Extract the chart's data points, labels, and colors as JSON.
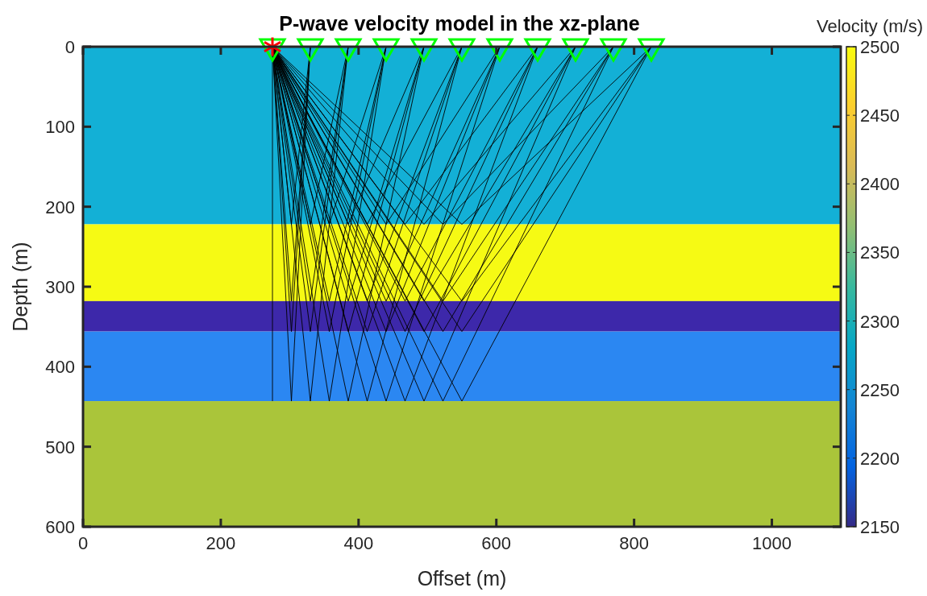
{
  "chart_data": {
    "type": "line",
    "title": "P-wave velocity model in the xz-plane",
    "xlabel": "Offset (m)",
    "ylabel": "Depth (m)",
    "clabel": "Velocity (m/s)",
    "xlim": [
      0,
      1100
    ],
    "xticks": [
      0,
      200,
      400,
      600,
      800,
      1000
    ],
    "ylim": [
      600,
      0
    ],
    "yticks": [
      0,
      100,
      200,
      300,
      400,
      500,
      600
    ],
    "clim": [
      2150,
      2500
    ],
    "cticks": [
      2150,
      2200,
      2250,
      2300,
      2350,
      2400,
      2450,
      2500
    ],
    "grid": false,
    "line_style": "solid",
    "bands": [
      {
        "axis": "y",
        "from": 0,
        "to": 222,
        "color": "#13b0d6"
      },
      {
        "axis": "y",
        "from": 222,
        "to": 318,
        "color": "#f6fa14"
      },
      {
        "axis": "y",
        "from": 318,
        "to": 356,
        "color": "#3d28aa"
      },
      {
        "axis": "y",
        "from": 356,
        "to": 443,
        "color": "#2b87f2"
      },
      {
        "axis": "y",
        "from": 443,
        "to": 600,
        "color": "#aac53a"
      }
    ],
    "series": [
      {
        "type": "line",
        "color": "#000000",
        "x": [
          275,
          302.5,
          330
        ],
        "values": [
          0,
          222,
          0
        ]
      },
      {
        "type": "line",
        "color": "#000000",
        "x": [
          275,
          330,
          385
        ],
        "values": [
          0,
          222,
          0
        ]
      },
      {
        "type": "line",
        "color": "#000000",
        "x": [
          275,
          357.5,
          440
        ],
        "values": [
          0,
          222,
          0
        ]
      },
      {
        "type": "line",
        "color": "#000000",
        "x": [
          275,
          385,
          495
        ],
        "values": [
          0,
          222,
          0
        ]
      },
      {
        "type": "line",
        "color": "#000000",
        "x": [
          275,
          412.5,
          550
        ],
        "values": [
          0,
          222,
          0
        ]
      },
      {
        "type": "line",
        "color": "#000000",
        "x": [
          275,
          440,
          605
        ],
        "values": [
          0,
          222,
          0
        ]
      },
      {
        "type": "line",
        "color": "#000000",
        "x": [
          275,
          467.5,
          660
        ],
        "values": [
          0,
          222,
          0
        ]
      },
      {
        "type": "line",
        "color": "#000000",
        "x": [
          275,
          495,
          715
        ],
        "values": [
          0,
          222,
          0
        ]
      },
      {
        "type": "line",
        "color": "#000000",
        "x": [
          275,
          522.5,
          770
        ],
        "values": [
          0,
          222,
          0
        ]
      },
      {
        "type": "line",
        "color": "#000000",
        "x": [
          275,
          550,
          825
        ],
        "values": [
          0,
          222,
          0
        ]
      },
      {
        "type": "line",
        "color": "#000000",
        "x": [
          275,
          302.5,
          330
        ],
        "values": [
          0,
          318,
          0
        ]
      },
      {
        "type": "line",
        "color": "#000000",
        "x": [
          275,
          330,
          385
        ],
        "values": [
          0,
          318,
          0
        ]
      },
      {
        "type": "line",
        "color": "#000000",
        "x": [
          275,
          357.5,
          440
        ],
        "values": [
          0,
          318,
          0
        ]
      },
      {
        "type": "line",
        "color": "#000000",
        "x": [
          275,
          385,
          495
        ],
        "values": [
          0,
          318,
          0
        ]
      },
      {
        "type": "line",
        "color": "#000000",
        "x": [
          275,
          412.5,
          550
        ],
        "values": [
          0,
          318,
          0
        ]
      },
      {
        "type": "line",
        "color": "#000000",
        "x": [
          275,
          440,
          605
        ],
        "values": [
          0,
          318,
          0
        ]
      },
      {
        "type": "line",
        "color": "#000000",
        "x": [
          275,
          467.5,
          660
        ],
        "values": [
          0,
          318,
          0
        ]
      },
      {
        "type": "line",
        "color": "#000000",
        "x": [
          275,
          495,
          715
        ],
        "values": [
          0,
          318,
          0
        ]
      },
      {
        "type": "line",
        "color": "#000000",
        "x": [
          275,
          522.5,
          770
        ],
        "values": [
          0,
          318,
          0
        ]
      },
      {
        "type": "line",
        "color": "#000000",
        "x": [
          275,
          550,
          825
        ],
        "values": [
          0,
          318,
          0
        ]
      },
      {
        "type": "line",
        "color": "#000000",
        "x": [
          275,
          302.5,
          330
        ],
        "values": [
          0,
          356,
          0
        ]
      },
      {
        "type": "line",
        "color": "#000000",
        "x": [
          275,
          330,
          385
        ],
        "values": [
          0,
          356,
          0
        ]
      },
      {
        "type": "line",
        "color": "#000000",
        "x": [
          275,
          357.5,
          440
        ],
        "values": [
          0,
          356,
          0
        ]
      },
      {
        "type": "line",
        "color": "#000000",
        "x": [
          275,
          385,
          495
        ],
        "values": [
          0,
          356,
          0
        ]
      },
      {
        "type": "line",
        "color": "#000000",
        "x": [
          275,
          412.5,
          550
        ],
        "values": [
          0,
          356,
          0
        ]
      },
      {
        "type": "line",
        "color": "#000000",
        "x": [
          275,
          440,
          605
        ],
        "values": [
          0,
          356,
          0
        ]
      },
      {
        "type": "line",
        "color": "#000000",
        "x": [
          275,
          467.5,
          660
        ],
        "values": [
          0,
          356,
          0
        ]
      },
      {
        "type": "line",
        "color": "#000000",
        "x": [
          275,
          495,
          715
        ],
        "values": [
          0,
          356,
          0
        ]
      },
      {
        "type": "line",
        "color": "#000000",
        "x": [
          275,
          522.5,
          770
        ],
        "values": [
          0,
          356,
          0
        ]
      },
      {
        "type": "line",
        "color": "#000000",
        "x": [
          275,
          550,
          825
        ],
        "values": [
          0,
          356,
          0
        ]
      },
      {
        "type": "line",
        "color": "#000000",
        "x": [
          275,
          275
        ],
        "values": [
          0,
          443
        ]
      },
      {
        "type": "line",
        "color": "#000000",
        "x": [
          275,
          302.5,
          330
        ],
        "values": [
          0,
          443,
          0
        ]
      },
      {
        "type": "line",
        "color": "#000000",
        "x": [
          275,
          330,
          385
        ],
        "values": [
          0,
          443,
          0
        ]
      },
      {
        "type": "line",
        "color": "#000000",
        "x": [
          275,
          357.5,
          440
        ],
        "values": [
          0,
          443,
          0
        ]
      },
      {
        "type": "line",
        "color": "#000000",
        "x": [
          275,
          385,
          495
        ],
        "values": [
          0,
          443,
          0
        ]
      },
      {
        "type": "line",
        "color": "#000000",
        "x": [
          275,
          412.5,
          550
        ],
        "values": [
          0,
          443,
          0
        ]
      },
      {
        "type": "line",
        "color": "#000000",
        "x": [
          275,
          440,
          605
        ],
        "values": [
          0,
          443,
          0
        ]
      },
      {
        "type": "line",
        "color": "#000000",
        "x": [
          275,
          467.5,
          660
        ],
        "values": [
          0,
          443,
          0
        ]
      },
      {
        "type": "line",
        "color": "#000000",
        "x": [
          275,
          495,
          715
        ],
        "values": [
          0,
          443,
          0
        ]
      },
      {
        "type": "line",
        "color": "#000000",
        "x": [
          275,
          522.5,
          770
        ],
        "values": [
          0,
          443,
          0
        ]
      },
      {
        "type": "line",
        "color": "#000000",
        "x": [
          275,
          550,
          825
        ],
        "values": [
          0,
          443,
          0
        ]
      },
      {
        "type": "scatter",
        "marker": "triangle",
        "color": "#00ff00",
        "x": [
          275,
          330,
          385,
          440,
          495,
          550,
          605,
          660,
          715,
          770,
          825
        ],
        "values": [
          0,
          0,
          0,
          0,
          0,
          0,
          0,
          0,
          0,
          0,
          0
        ]
      },
      {
        "type": "scatter",
        "marker": "cross",
        "color": "#ff0000",
        "x": [
          275
        ],
        "values": [
          0
        ]
      }
    ]
  }
}
